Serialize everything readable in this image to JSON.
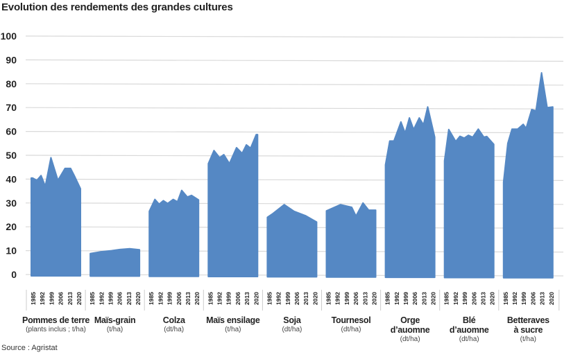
{
  "title": "Evolution des rendements des grandes cultures",
  "source": "Source : Agristat",
  "chart_data": {
    "type": "area",
    "title": "Evolution des rendements des grandes cultures",
    "ylim": [
      0,
      100
    ],
    "yticks": [
      "0",
      "10",
      "20",
      "30",
      "40",
      "50",
      "60",
      "70",
      "80",
      "90",
      "100"
    ],
    "xticks": [
      "1985",
      "1992",
      "1999",
      "2006",
      "2013",
      "2020"
    ],
    "grid": true,
    "color": "#5588c4",
    "groups": [
      {
        "name": [
          "Pommes de terre"
        ],
        "unit": "(plants inclus ; t/ha)",
        "points": [
          [
            1985,
            40.5
          ],
          [
            1986,
            40.5
          ],
          [
            1989,
            39.5
          ],
          [
            1992,
            41.5
          ],
          [
            1995,
            37
          ],
          [
            1999,
            49
          ],
          [
            2004,
            39.5
          ],
          [
            2009,
            44.5
          ],
          [
            2013,
            44.5
          ],
          [
            2016,
            41
          ],
          [
            2020,
            36
          ]
        ]
      },
      {
        "name": [
          "Maïs-grain"
        ],
        "unit": "(t/ha)",
        "points": [
          [
            1985,
            8.8
          ],
          [
            1992,
            9.5
          ],
          [
            2000,
            10
          ],
          [
            2006,
            10.5
          ],
          [
            2013,
            10.8
          ],
          [
            2020,
            10.4
          ]
        ]
      },
      {
        "name": [
          "Colza"
        ],
        "unit": "(dt/ha)",
        "points": [
          [
            1985,
            26.5
          ],
          [
            1989,
            31.5
          ],
          [
            1992,
            29.5
          ],
          [
            1995,
            31
          ],
          [
            1998,
            29.8
          ],
          [
            2002,
            31.5
          ],
          [
            2005,
            30.5
          ],
          [
            2008,
            35.3
          ],
          [
            2012,
            32.5
          ],
          [
            2015,
            33.2
          ],
          [
            2020,
            31.3
          ]
        ]
      },
      {
        "name": [
          "Maïs ensilage"
        ],
        "unit": "(t/ha)",
        "points": [
          [
            1985,
            46.5
          ],
          [
            1989,
            52
          ],
          [
            1993,
            49
          ],
          [
            1996,
            50.3
          ],
          [
            2000,
            46.5
          ],
          [
            2005,
            53.2
          ],
          [
            2009,
            50.8
          ],
          [
            2012,
            54.4
          ],
          [
            2015,
            53
          ],
          [
            2019,
            58.7
          ],
          [
            2020,
            58.7
          ]
        ]
      },
      {
        "name": [
          "Soja"
        ],
        "unit": "(dt/ha)",
        "points": [
          [
            1985,
            24
          ],
          [
            1989,
            25.6
          ],
          [
            1997,
            29.3
          ],
          [
            2004,
            26.5
          ],
          [
            2012,
            24.7
          ],
          [
            2020,
            22
          ]
        ]
      },
      {
        "name": [
          "Tournesol"
        ],
        "unit": "(dt/ha)",
        "points": [
          [
            1985,
            26.7
          ],
          [
            1995,
            29.3
          ],
          [
            2003,
            28.2
          ],
          [
            2006,
            24.5
          ],
          [
            2011,
            30
          ],
          [
            2015,
            27
          ],
          [
            2020,
            27
          ]
        ]
      },
      {
        "name": [
          "Orge",
          "d’auomne"
        ],
        "unit": "(dt/ha)",
        "points": [
          [
            1985,
            46
          ],
          [
            1988,
            56
          ],
          [
            1991,
            56
          ],
          [
            1996,
            64
          ],
          [
            1999,
            59.3
          ],
          [
            2002,
            65.7
          ],
          [
            2005,
            60.8
          ],
          [
            2009,
            65.7
          ],
          [
            2012,
            62.8
          ],
          [
            2015,
            70.3
          ],
          [
            2020,
            57.6
          ]
        ]
      },
      {
        "name": [
          "Blé",
          "d’auomne"
        ],
        "unit": "(dt/ha)",
        "points": [
          [
            1985,
            47.7
          ],
          [
            1988,
            60.8
          ],
          [
            1993,
            55.8
          ],
          [
            1996,
            58
          ],
          [
            1999,
            57.2
          ],
          [
            2002,
            58.4
          ],
          [
            2005,
            57.6
          ],
          [
            2009,
            61
          ],
          [
            2013,
            57.6
          ],
          [
            2015,
            57.9
          ],
          [
            2020,
            54.6
          ]
        ]
      },
      {
        "name": [
          "Betteraves",
          "à sucre"
        ],
        "unit": "(t/ha)",
        "points": [
          [
            1985,
            38.7
          ],
          [
            1988,
            55
          ],
          [
            1991,
            61
          ],
          [
            1995,
            61
          ],
          [
            1999,
            63
          ],
          [
            2001,
            61.3
          ],
          [
            2005,
            69.2
          ],
          [
            2008,
            68.6
          ],
          [
            2012,
            84.6
          ],
          [
            2016,
            70
          ],
          [
            2020,
            70.3
          ]
        ]
      }
    ]
  }
}
